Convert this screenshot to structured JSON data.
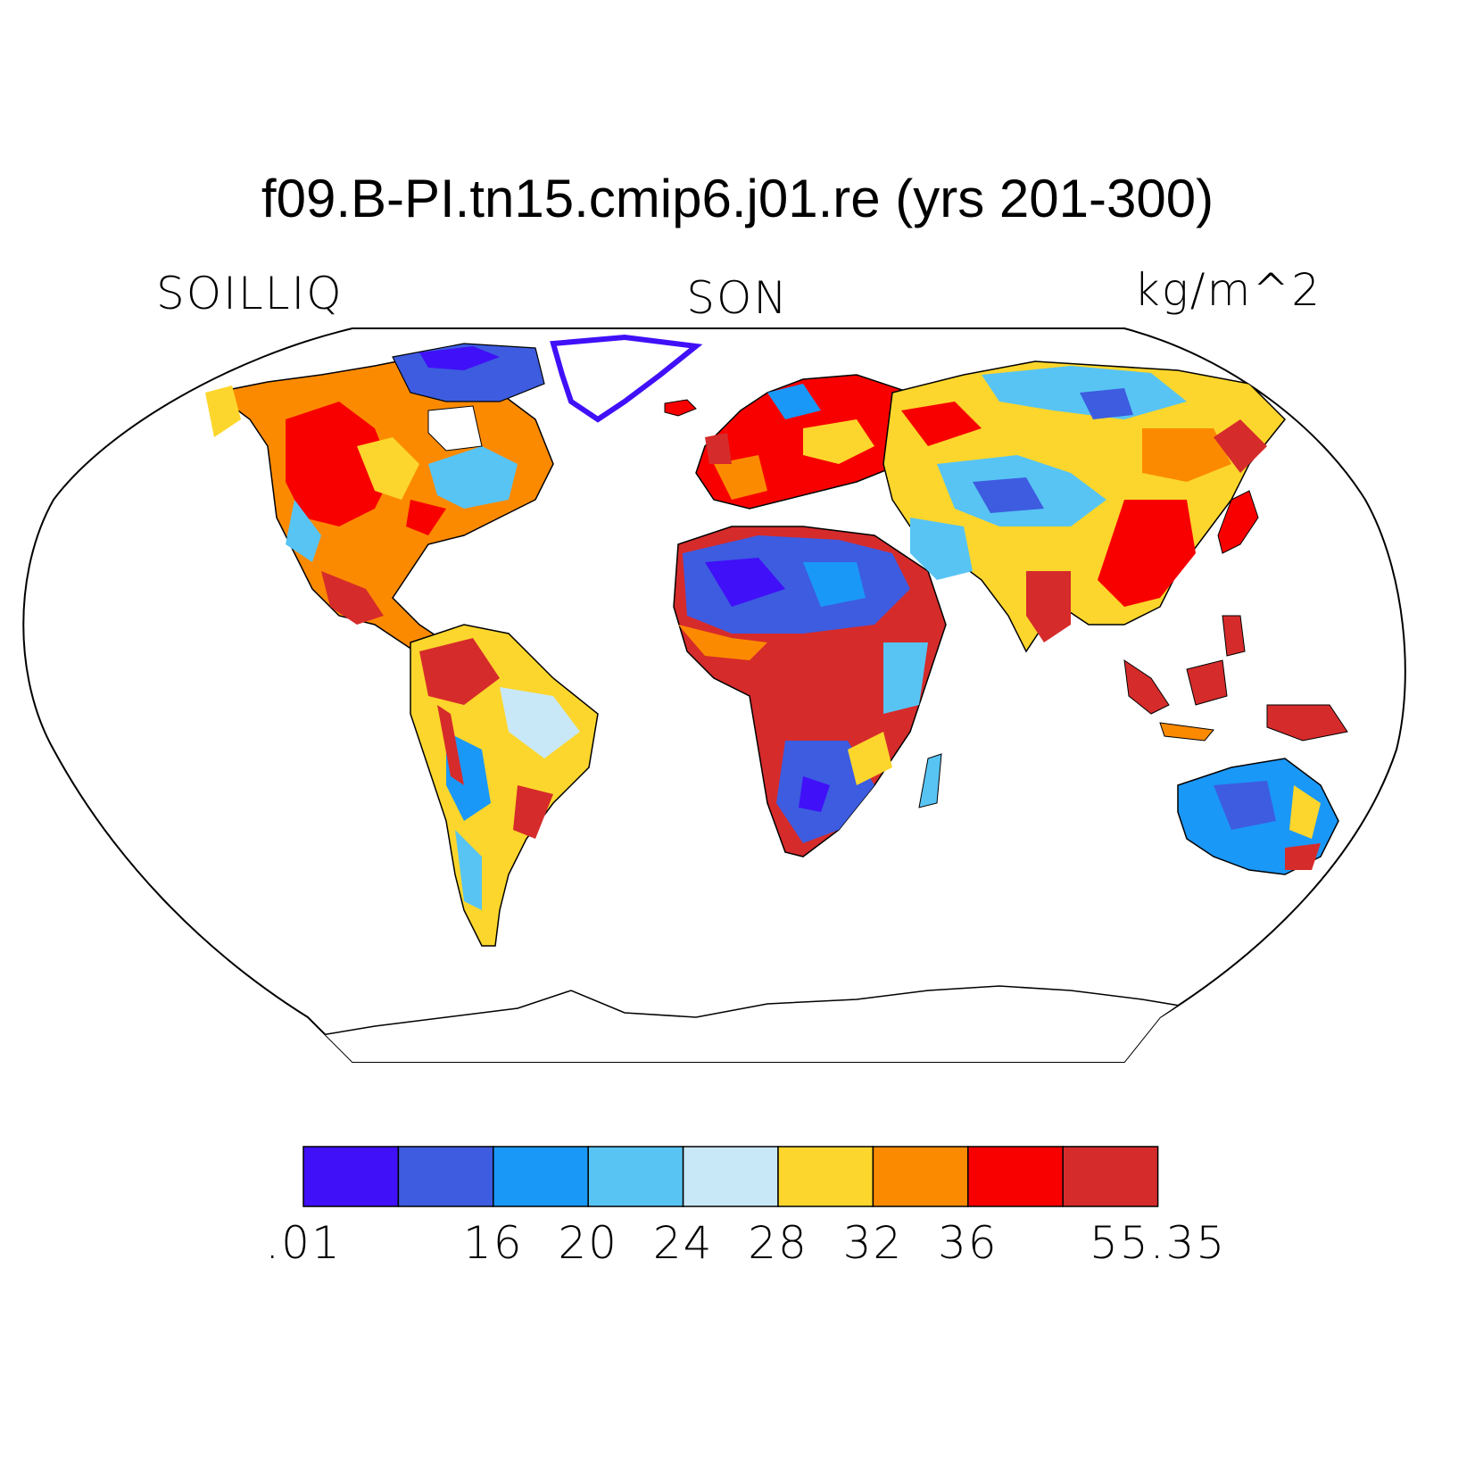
{
  "title": "f09.B-PI.tn15.cmip6.j01.re (yrs 201-300)",
  "variable_label": "SOILLIQ",
  "season_label": "SON",
  "units_label": "kg/m^2",
  "colorbar": {
    "colors": [
      "#4010f8",
      "#3d5ce0",
      "#1a98f8",
      "#58c4f4",
      "#c9e8f7",
      "#fcd62c",
      "#fc8a00",
      "#f90000",
      "#d62b2b"
    ],
    "labels": [
      {
        "text": ".01",
        "edge": 0
      },
      {
        "text": "16",
        "edge": 2
      },
      {
        "text": "20",
        "edge": 3
      },
      {
        "text": "24",
        "edge": 4
      },
      {
        "text": "28",
        "edge": 5
      },
      {
        "text": "32",
        "edge": 6
      },
      {
        "text": "36",
        "edge": 7
      },
      {
        "text": "55.35",
        "edge": 9
      }
    ]
  }
}
